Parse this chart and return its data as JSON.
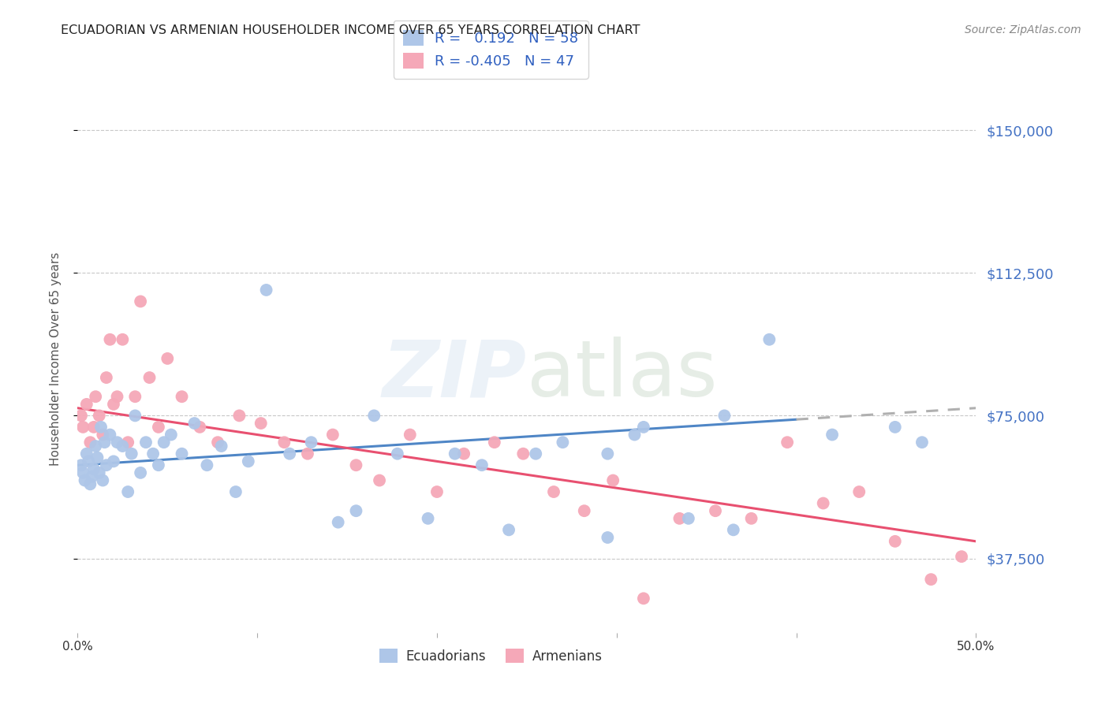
{
  "title": "ECUADORIAN VS ARMENIAN HOUSEHOLDER INCOME OVER 65 YEARS CORRELATION CHART",
  "source": "Source: ZipAtlas.com",
  "ylabel": "Householder Income Over 65 years",
  "xlim": [
    0.0,
    0.5
  ],
  "ylim": [
    18000,
    162000
  ],
  "yticks": [
    37500,
    75000,
    112500,
    150000
  ],
  "ytick_labels": [
    "$37,500",
    "$75,000",
    "$112,500",
    "$150,000"
  ],
  "xticks": [
    0.0,
    0.1,
    0.2,
    0.3,
    0.4,
    0.5
  ],
  "xtick_labels": [
    "0.0%",
    "",
    "",
    "",
    "",
    "50.0%"
  ],
  "background_color": "#ffffff",
  "grid_color": "#c8c8c8",
  "ecuadorian_color": "#aec6e8",
  "armenian_color": "#f5a8b8",
  "trendline_ecu_color": "#4f86c6",
  "trendline_arm_color": "#e85070",
  "trendline_ecu_dashed_color": "#b0b0b0",
  "axis_label_color": "#4472c4",
  "r_ecu": 0.192,
  "n_ecu": 58,
  "r_arm": -0.405,
  "n_arm": 47,
  "legend_color": "#3060c0",
  "ecuadorian_x": [
    0.002,
    0.003,
    0.004,
    0.005,
    0.006,
    0.007,
    0.008,
    0.009,
    0.01,
    0.011,
    0.012,
    0.013,
    0.014,
    0.015,
    0.016,
    0.018,
    0.02,
    0.022,
    0.025,
    0.028,
    0.03,
    0.032,
    0.035,
    0.038,
    0.042,
    0.045,
    0.048,
    0.052,
    0.058,
    0.065,
    0.072,
    0.08,
    0.088,
    0.095,
    0.105,
    0.118,
    0.13,
    0.145,
    0.155,
    0.165,
    0.178,
    0.195,
    0.21,
    0.225,
    0.24,
    0.255,
    0.27,
    0.295,
    0.315,
    0.34,
    0.365,
    0.385,
    0.295,
    0.31,
    0.36,
    0.42,
    0.455,
    0.47
  ],
  "ecuadorian_y": [
    62000,
    60000,
    58000,
    65000,
    63000,
    57000,
    59000,
    61000,
    67000,
    64000,
    60000,
    72000,
    58000,
    68000,
    62000,
    70000,
    63000,
    68000,
    67000,
    55000,
    65000,
    75000,
    60000,
    68000,
    65000,
    62000,
    68000,
    70000,
    65000,
    73000,
    62000,
    67000,
    55000,
    63000,
    108000,
    65000,
    68000,
    47000,
    50000,
    75000,
    65000,
    48000,
    65000,
    62000,
    45000,
    65000,
    68000,
    43000,
    72000,
    48000,
    45000,
    95000,
    65000,
    70000,
    75000,
    70000,
    72000,
    68000
  ],
  "armenian_x": [
    0.002,
    0.003,
    0.005,
    0.007,
    0.009,
    0.01,
    0.012,
    0.014,
    0.016,
    0.018,
    0.02,
    0.022,
    0.025,
    0.028,
    0.032,
    0.035,
    0.04,
    0.045,
    0.05,
    0.058,
    0.068,
    0.078,
    0.09,
    0.102,
    0.115,
    0.128,
    0.142,
    0.155,
    0.168,
    0.185,
    0.2,
    0.215,
    0.232,
    0.248,
    0.265,
    0.282,
    0.298,
    0.315,
    0.335,
    0.355,
    0.375,
    0.395,
    0.415,
    0.435,
    0.455,
    0.475,
    0.492
  ],
  "armenian_y": [
    75000,
    72000,
    78000,
    68000,
    72000,
    80000,
    75000,
    70000,
    85000,
    95000,
    78000,
    80000,
    95000,
    68000,
    80000,
    105000,
    85000,
    72000,
    90000,
    80000,
    72000,
    68000,
    75000,
    73000,
    68000,
    65000,
    70000,
    62000,
    58000,
    70000,
    55000,
    65000,
    68000,
    65000,
    55000,
    50000,
    58000,
    27000,
    48000,
    50000,
    48000,
    68000,
    52000,
    55000,
    42000,
    32000,
    38000
  ]
}
